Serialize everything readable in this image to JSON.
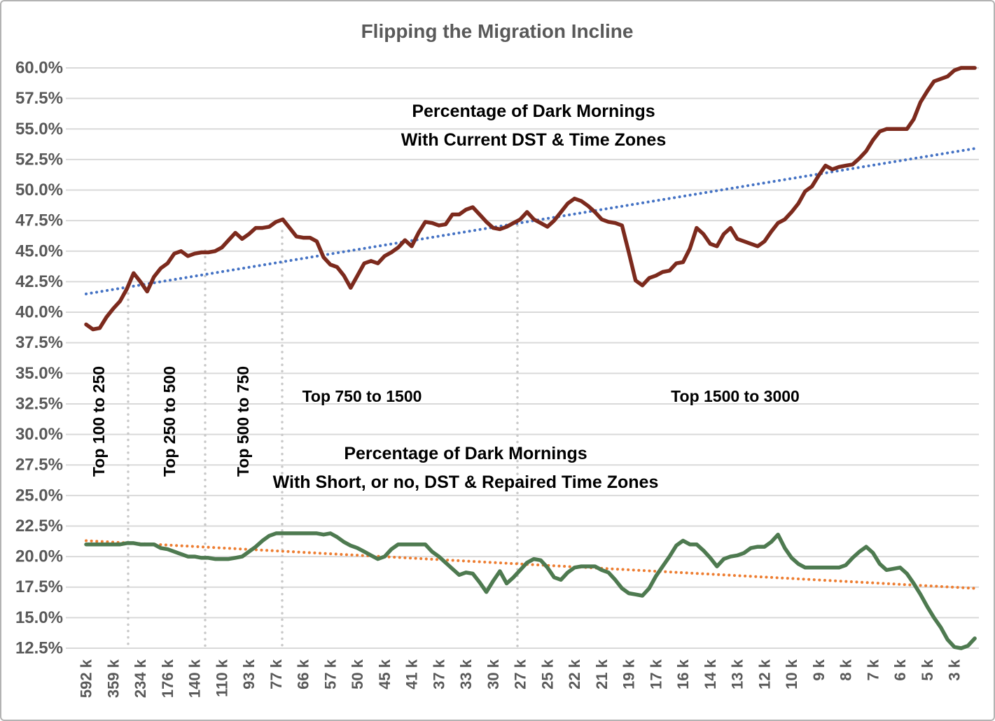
{
  "chart_data": {
    "type": "line",
    "title": "Flipping the Migration Incline",
    "grid": "horizontal",
    "legend": false,
    "y_axis": {
      "min": 12.5,
      "max": 60.0,
      "step": 2.5,
      "tick_labels": [
        "60.0%",
        "57.5%",
        "55.0%",
        "52.5%",
        "50.0%",
        "47.5%",
        "45.0%",
        "42.5%",
        "40.0%",
        "37.5%",
        "35.0%",
        "32.5%",
        "30.0%",
        "27.5%",
        "25.0%",
        "22.5%",
        "20.0%",
        "17.5%",
        "15.0%",
        "12.5%"
      ]
    },
    "x_axis": {
      "tick_labels": [
        "592 k",
        "359 k",
        "234 k",
        "176 k",
        "140 k",
        "110 k",
        "93 k",
        "77 k",
        "66 k",
        "57 k",
        "50 k",
        "45 k",
        "41 k",
        "37 k",
        "33 k",
        "30 k",
        "27 k",
        "25 k",
        "22 k",
        "21 k",
        "19 k",
        "17 k",
        "16 k",
        "14 k",
        "13 k",
        "12 k",
        "10 k",
        "9 k",
        "8 k",
        "7 k",
        "6 k",
        "5 k",
        "3 k"
      ]
    },
    "series": [
      {
        "name": "Percentage of Dark Mornings With Current DST & Time Zones",
        "color": "#7c2a1d",
        "x_start": 0,
        "x_step": 0.25,
        "values": [
          39.0,
          38.6,
          38.7,
          39.6,
          40.3,
          40.9,
          41.9,
          43.2,
          42.5,
          41.7,
          42.9,
          43.6,
          44.0,
          44.8,
          45.0,
          44.6,
          44.8,
          44.9,
          44.9,
          45.0,
          45.3,
          45.9,
          46.5,
          46.0,
          46.4,
          46.9,
          46.9,
          47.0,
          47.4,
          47.6,
          46.9,
          46.2,
          46.1,
          46.1,
          45.8,
          44.5,
          43.9,
          43.7,
          43.0,
          42.0,
          43.0,
          44.0,
          44.2,
          44.0,
          44.6,
          44.9,
          45.3,
          45.9,
          45.4,
          46.5,
          47.4,
          47.3,
          47.1,
          47.2,
          48.0,
          48.0,
          48.4,
          48.6,
          48.0,
          47.4,
          46.9,
          46.8,
          47.0,
          47.3,
          47.6,
          48.2,
          47.6,
          47.3,
          47.0,
          47.5,
          48.2,
          48.9,
          49.3,
          49.1,
          48.7,
          48.2,
          47.6,
          47.4,
          47.3,
          47.1,
          44.9,
          42.6,
          42.2,
          42.8,
          43.0,
          43.3,
          43.4,
          44.0,
          44.1,
          45.2,
          46.9,
          46.4,
          45.6,
          45.4,
          46.4,
          46.9,
          46.0,
          45.8,
          45.6,
          45.4,
          45.8,
          46.6,
          47.3,
          47.6,
          48.2,
          48.9,
          49.9,
          50.3,
          51.2,
          52.0,
          51.7,
          51.9,
          52.0,
          52.1,
          52.6,
          53.2,
          54.1,
          54.8,
          55.0,
          55.0,
          55.0,
          55.0,
          55.8,
          57.2,
          58.1,
          58.9,
          59.1,
          59.3,
          59.8,
          60.0,
          60.0,
          60.0
        ]
      },
      {
        "name": "Percentage of Dark Mornings With Short, or no, DST & Repaired Time Zones",
        "color": "#4e7a50",
        "x_start": 0,
        "x_step": 0.25,
        "values": [
          21.0,
          21.0,
          21.0,
          21.0,
          21.0,
          21.0,
          21.1,
          21.1,
          21.0,
          21.0,
          21.0,
          20.7,
          20.6,
          20.4,
          20.2,
          20.0,
          20.0,
          19.9,
          19.9,
          19.8,
          19.8,
          19.8,
          19.9,
          20.0,
          20.4,
          20.8,
          21.3,
          21.7,
          21.9,
          21.9,
          21.9,
          21.9,
          21.9,
          21.9,
          21.9,
          21.8,
          21.9,
          21.6,
          21.2,
          20.9,
          20.7,
          20.4,
          20.1,
          19.8,
          20.0,
          20.6,
          21.0,
          21.0,
          21.0,
          21.0,
          21.0,
          20.4,
          20.0,
          19.5,
          19.0,
          18.5,
          18.7,
          18.6,
          17.9,
          17.1,
          18.0,
          18.8,
          17.8,
          18.3,
          18.9,
          19.5,
          19.8,
          19.7,
          19.1,
          18.3,
          18.1,
          18.7,
          19.1,
          19.2,
          19.2,
          19.2,
          18.9,
          18.7,
          18.1,
          17.4,
          17.0,
          16.9,
          16.8,
          17.4,
          18.4,
          19.2,
          20.0,
          20.9,
          21.3,
          21.0,
          21.0,
          20.5,
          19.9,
          19.2,
          19.8,
          20.0,
          20.1,
          20.3,
          20.7,
          20.8,
          20.8,
          21.2,
          21.8,
          20.7,
          19.9,
          19.4,
          19.1,
          19.1,
          19.1,
          19.1,
          19.1,
          19.1,
          19.3,
          19.9,
          20.4,
          20.8,
          20.3,
          19.4,
          18.9,
          19.0,
          19.1,
          18.6,
          17.8,
          16.9,
          15.9,
          15.0,
          14.2,
          13.2,
          12.6,
          12.5,
          12.7,
          13.3
        ]
      }
    ],
    "trendlines": [
      {
        "for_series": "Current DST & Time Zones",
        "style": "dotted",
        "color": "#4472c4",
        "start_value": 41.5,
        "end_value": 53.4
      },
      {
        "for_series": "Short, or no, DST & Repaired Time Zones",
        "style": "dotted",
        "color": "#ed7d31",
        "start_value": 21.3,
        "end_value": 17.4
      }
    ],
    "segment_labels": [
      {
        "text": "Top 100 to 250",
        "rotated": true
      },
      {
        "text": "Top 250 to 500",
        "rotated": true
      },
      {
        "text": "Top 500 to 750",
        "rotated": true
      },
      {
        "text": "Top 750 to 1500",
        "rotated": false
      },
      {
        "text": "Top 1500 to 3000",
        "rotated": false
      }
    ],
    "annotations": [
      {
        "line1": "Percentage of Dark Mornings",
        "line2": "With Current DST & Time Zones"
      },
      {
        "line1": "Percentage of Dark Mornings",
        "line2": "With Short, or no, DST & Repaired Time Zones"
      }
    ],
    "colors": {
      "current_series": "#7c2a1d",
      "repaired_series": "#4e7a50",
      "current_trend": "#4472c4",
      "repaired_trend": "#ed7d31",
      "gridline": "#d9d9d9",
      "divider": "#c9c9c9",
      "axis_text": "#595959",
      "title_text": "#595959",
      "annotation_text": "#000000",
      "background": "#ffffff"
    }
  }
}
